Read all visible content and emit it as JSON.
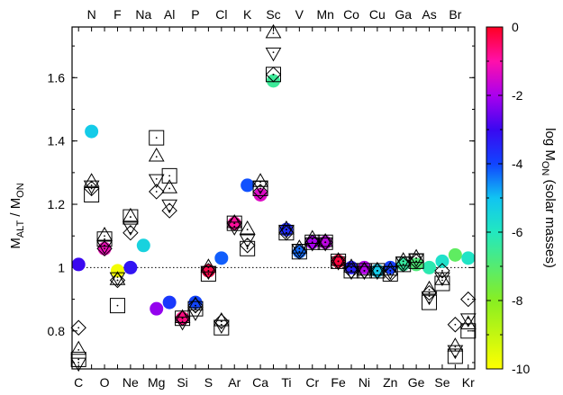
{
  "chart_data": {
    "type": "scatter",
    "title": "",
    "ylabel": "M",
    "ylabel_sub_1": "ALT",
    "ylabel_mid": " / M",
    "ylabel_sub_2": "ON",
    "colorbar_label": "log M",
    "colorbar_label_sub": "ON",
    "colorbar_label_tail": " (solar masses)",
    "ylim": [
      0.68,
      1.76
    ],
    "yticks": [
      "0.8",
      "1",
      "1.2",
      "1.4",
      "1.6"
    ],
    "colorbar_range": [
      -10,
      0
    ],
    "colorbar_ticks": [
      "-10",
      "-8",
      "-6",
      "-4",
      "-2",
      "0"
    ],
    "reference_line": 1,
    "grid": false,
    "legend": "none",
    "elements_bottom": [
      "C",
      "O",
      "Ne",
      "Mg",
      "Si",
      "S",
      "Ar",
      "Ca",
      "Ti",
      "Cr",
      "Fe",
      "Ni",
      "Zn",
      "Ge",
      "Se",
      "Kr"
    ],
    "elements_top": [
      "N",
      "F",
      "Na",
      "Al",
      "P",
      "Cl",
      "K",
      "Sc",
      "V",
      "Mn",
      "Co",
      "Cu",
      "Ga",
      "As",
      "Br"
    ],
    "element_order": [
      "C",
      "N",
      "O",
      "F",
      "Ne",
      "Na",
      "Mg",
      "Al",
      "Si",
      "P",
      "S",
      "Cl",
      "Ar",
      "K",
      "Ca",
      "Sc",
      "Ti",
      "V",
      "Cr",
      "Mn",
      "Fe",
      "Co",
      "Ni",
      "Cu",
      "Zn",
      "Ga",
      "Ge",
      "As",
      "Se",
      "Br",
      "Kr"
    ],
    "marker_series": [
      "square",
      "triangle-up",
      "triangle-down",
      "diamond"
    ],
    "markers": {
      "C": [
        0.71,
        0.74,
        0.7,
        0.81
      ],
      "N": [
        1.23,
        1.27,
        1.26,
        1.25
      ],
      "O": [
        1.09,
        1.1,
        1.07,
        1.06
      ],
      "F": [
        0.88,
        0.96,
        0.97,
        0.96
      ],
      "Ne": [
        1.16,
        1.16,
        1.13,
        1.11
      ],
      "Na": null,
      "Mg": [
        1.41,
        1.35,
        1.28,
        1.24
      ],
      "Al": [
        1.29,
        1.25,
        1.2,
        1.18
      ],
      "Si": [
        0.84,
        0.84,
        0.83,
        0.84
      ],
      "P": [
        0.87,
        0.88,
        0.86,
        0.88
      ],
      "S": [
        0.98,
        1.0,
        0.99,
        0.99
      ],
      "Cl": [
        0.81,
        0.83,
        0.82,
        0.83
      ],
      "Ar": [
        1.14,
        1.14,
        1.13,
        1.14
      ],
      "K": [
        1.06,
        1.12,
        1.09,
        1.07
      ],
      "Ca": [
        1.25,
        1.27,
        1.26,
        1.24
      ],
      "Sc": [
        1.61,
        1.74,
        1.68,
        1.61
      ],
      "Ti": [
        1.11,
        1.12,
        1.12,
        1.11
      ],
      "V": [
        1.05,
        1.06,
        1.06,
        1.05
      ],
      "Cr": [
        1.08,
        1.09,
        1.08,
        1.08
      ],
      "Mn": [
        1.08,
        1.08,
        1.08,
        1.08
      ],
      "Fe": [
        1.02,
        1.02,
        1.02,
        1.02
      ],
      "Co": [
        0.99,
        1.0,
        0.99,
        0.99
      ],
      "Ni": [
        0.99,
        0.99,
        0.99,
        0.99
      ],
      "Cu": [
        0.99,
        0.99,
        0.99,
        0.99
      ],
      "Zn": [
        0.98,
        0.99,
        0.99,
        0.98
      ],
      "Ga": [
        1.01,
        1.02,
        1.02,
        1.01
      ],
      "Ge": [
        1.02,
        1.03,
        1.03,
        1.02
      ],
      "As": [
        0.89,
        0.93,
        0.91,
        0.92
      ],
      "Se": [
        0.95,
        0.96,
        0.97,
        0.99
      ],
      "Br": [
        0.72,
        0.75,
        0.74,
        0.82
      ],
      "Kr": [
        0.8,
        0.82,
        0.84,
        0.9
      ]
    },
    "circles": [
      {
        "element": "C",
        "y": 1.01,
        "log_m": -3
      },
      {
        "element": "N",
        "y": 1.43,
        "log_m": -5.2
      },
      {
        "element": "O",
        "y": 1.06,
        "log_m": -1.2
      },
      {
        "element": "F",
        "y": 0.99,
        "log_m": -9.8
      },
      {
        "element": "Ne",
        "y": 1.0,
        "log_m": -3.2
      },
      {
        "element": "Na",
        "y": 1.07,
        "log_m": -5.4
      },
      {
        "element": "Mg",
        "y": 0.87,
        "log_m": -2.2
      },
      {
        "element": "Al",
        "y": 0.89,
        "log_m": -3.8
      },
      {
        "element": "Si",
        "y": 0.84,
        "log_m": -0.7
      },
      {
        "element": "P",
        "y": 0.89,
        "log_m": -4.0
      },
      {
        "element": "S",
        "y": 0.99,
        "log_m": -0.3
      },
      {
        "element": "Cl",
        "y": 1.03,
        "log_m": -4.2
      },
      {
        "element": "Ar",
        "y": 1.14,
        "log_m": -0.9
      },
      {
        "element": "K",
        "y": 1.26,
        "log_m": -4.1
      },
      {
        "element": "Ca",
        "y": 1.23,
        "log_m": -1.4
      },
      {
        "element": "Sc",
        "y": 1.59,
        "log_m": -6.5
      },
      {
        "element": "Ti",
        "y": 1.12,
        "log_m": -3.6
      },
      {
        "element": "V",
        "y": 1.05,
        "log_m": -4.3
      },
      {
        "element": "Cr",
        "y": 1.08,
        "log_m": -2.0
      },
      {
        "element": "Mn",
        "y": 1.08,
        "log_m": -1.8
      },
      {
        "element": "Fe",
        "y": 1.02,
        "log_m": -0.2
      },
      {
        "element": "Co",
        "y": 1.0,
        "log_m": -3.4
      },
      {
        "element": "Ni",
        "y": 1.0,
        "log_m": -1.9
      },
      {
        "element": "Cu",
        "y": 0.99,
        "log_m": -5.2
      },
      {
        "element": "Zn",
        "y": 1.0,
        "log_m": -3.9
      },
      {
        "element": "Ga",
        "y": 1.01,
        "log_m": -6.4
      },
      {
        "element": "Ge",
        "y": 1.01,
        "log_m": -6.9
      },
      {
        "element": "As",
        "y": 1.0,
        "log_m": -6.2
      },
      {
        "element": "Se",
        "y": 1.02,
        "log_m": -5.8
      },
      {
        "element": "Br",
        "y": 1.04,
        "log_m": -7.2
      },
      {
        "element": "Kr",
        "y": 1.03,
        "log_m": -5.9
      }
    ]
  }
}
